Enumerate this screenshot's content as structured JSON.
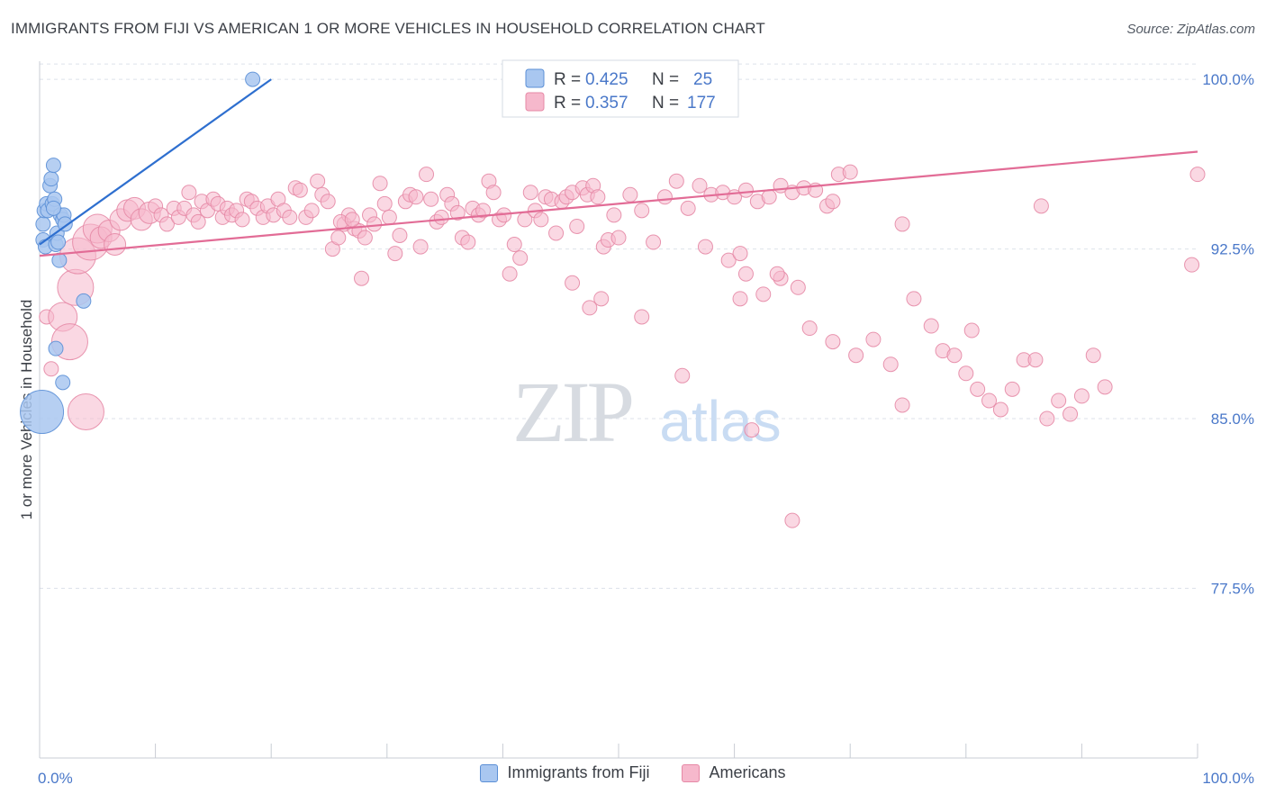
{
  "title": "IMMIGRANTS FROM FIJI VS AMERICAN 1 OR MORE VEHICLES IN HOUSEHOLD CORRELATION CHART",
  "source": "Source: ZipAtlas.com",
  "watermark": {
    "zip": "ZIP",
    "atlas": "atlas"
  },
  "colors": {
    "blue_fill": "#a9c7f0",
    "blue_stroke": "#5b8fd6",
    "blue_line": "#2e6fcf",
    "pink_fill": "#f6b8cc",
    "pink_stroke": "#e689a6",
    "pink_line": "#e26c96",
    "tick_text": "#4a78c9",
    "grid": "#dde2ea"
  },
  "legend": {
    "rows": [
      {
        "r_label": "R =",
        "r_value": "0.425",
        "n_label": "N =",
        "n_value": "25"
      },
      {
        "r_label": "R =",
        "r_value": "0.357",
        "n_label": "N =",
        "n_value": "177"
      }
    ]
  },
  "bottom_legend": [
    "Immigrants from Fiji",
    "Americans"
  ],
  "chart_data": {
    "type": "scatter",
    "title": "IMMIGRANTS FROM FIJI VS AMERICAN 1 OR MORE VEHICLES IN HOUSEHOLD CORRELATION CHART",
    "xlabel": "",
    "ylabel": "1 or more Vehicles in Household",
    "xlim": [
      0,
      100
    ],
    "ylim": [
      70.0,
      100.8
    ],
    "x_tick_labels": [
      "0.0%",
      "100.0%"
    ],
    "y_ticks": [
      77.5,
      85.0,
      92.5,
      100.0
    ],
    "y_tick_labels": [
      "77.5%",
      "85.0%",
      "92.5%",
      "100.0%"
    ],
    "grid": true,
    "legend_position": "top-center",
    "series": [
      {
        "name": "Immigrants from Fiji",
        "R": 0.425,
        "N": 25,
        "trend": [
          [
            0.0,
            92.7
          ],
          [
            20.0,
            100.0
          ]
        ],
        "points": [
          [
            0.2,
            85.3,
            3
          ],
          [
            0.3,
            92.9,
            1
          ],
          [
            0.3,
            93.6,
            1
          ],
          [
            0.4,
            94.2,
            1
          ],
          [
            0.5,
            92.6,
            1
          ],
          [
            0.6,
            94.5,
            1
          ],
          [
            0.7,
            94.2,
            1
          ],
          [
            0.9,
            95.3,
            1
          ],
          [
            1.0,
            95.6,
            1
          ],
          [
            1.1,
            94.5,
            1
          ],
          [
            1.2,
            96.2,
            1
          ],
          [
            1.3,
            94.7,
            1
          ],
          [
            1.4,
            92.7,
            1
          ],
          [
            1.5,
            93.2,
            1
          ],
          [
            1.6,
            92.8,
            1
          ],
          [
            1.7,
            92.0,
            1
          ],
          [
            1.8,
            94.0,
            1
          ],
          [
            2.0,
            93.8,
            1
          ],
          [
            2.1,
            94.0,
            1
          ],
          [
            2.2,
            93.6,
            1
          ],
          [
            1.4,
            88.1,
            1
          ],
          [
            2.0,
            86.6,
            1
          ],
          [
            3.8,
            90.2,
            1
          ],
          [
            1.2,
            94.3,
            1
          ],
          [
            18.4,
            100.0,
            1
          ]
        ]
      },
      {
        "name": "Americans",
        "R": 0.357,
        "N": 177,
        "trend": [
          [
            0.0,
            92.2
          ],
          [
            100.0,
            96.8
          ]
        ],
        "points": [
          [
            0.6,
            89.5,
            1
          ],
          [
            1.0,
            87.2,
            1
          ],
          [
            2.0,
            89.5,
            2
          ],
          [
            2.6,
            88.4,
            2.5
          ],
          [
            3.1,
            90.8,
            2.5
          ],
          [
            3.3,
            92.2,
            2.5
          ],
          [
            4.0,
            85.3,
            2.5
          ],
          [
            4.4,
            92.8,
            2.5
          ],
          [
            5.0,
            93.4,
            2
          ],
          [
            5.3,
            93.0,
            1.5
          ],
          [
            6.0,
            93.3,
            1.5
          ],
          [
            6.5,
            92.7,
            1.5
          ],
          [
            7.0,
            93.8,
            1.5
          ],
          [
            7.6,
            94.2,
            1.5
          ],
          [
            8.2,
            94.3,
            1.5
          ],
          [
            8.8,
            93.8,
            1.5
          ],
          [
            9.5,
            94.1,
            1.5
          ],
          [
            10.0,
            94.4,
            1
          ],
          [
            10.5,
            94.0,
            1
          ],
          [
            11.0,
            93.6,
            1
          ],
          [
            11.6,
            94.3,
            1
          ],
          [
            12.0,
            93.9,
            1
          ],
          [
            12.5,
            94.3,
            1
          ],
          [
            12.9,
            95.0,
            1
          ],
          [
            13.3,
            94.0,
            1
          ],
          [
            13.7,
            93.7,
            1
          ],
          [
            14.0,
            94.6,
            1
          ],
          [
            14.5,
            94.2,
            1
          ],
          [
            15.0,
            94.7,
            1
          ],
          [
            15.4,
            94.5,
            1
          ],
          [
            15.8,
            93.9,
            1
          ],
          [
            16.2,
            94.3,
            1
          ],
          [
            16.6,
            94.0,
            1
          ],
          [
            17.0,
            94.2,
            1
          ],
          [
            17.5,
            93.8,
            1
          ],
          [
            17.9,
            94.7,
            1
          ],
          [
            18.3,
            94.6,
            1
          ],
          [
            18.8,
            94.3,
            1
          ],
          [
            19.3,
            93.9,
            1
          ],
          [
            19.7,
            94.4,
            1
          ],
          [
            20.2,
            94.0,
            1
          ],
          [
            20.6,
            94.7,
            1
          ],
          [
            21.1,
            94.2,
            1
          ],
          [
            21.6,
            93.9,
            1
          ],
          [
            22.1,
            95.2,
            1
          ],
          [
            22.5,
            95.1,
            1
          ],
          [
            23.0,
            93.9,
            1
          ],
          [
            23.5,
            94.2,
            1
          ],
          [
            24.0,
            95.5,
            1
          ],
          [
            24.4,
            94.9,
            1
          ],
          [
            24.9,
            94.6,
            1
          ],
          [
            25.3,
            92.5,
            1
          ],
          [
            25.8,
            93.0,
            1
          ],
          [
            26.3,
            93.6,
            1
          ],
          [
            26.7,
            94.0,
            1
          ],
          [
            27.2,
            93.4,
            1
          ],
          [
            27.6,
            93.3,
            1
          ],
          [
            28.1,
            93.0,
            1
          ],
          [
            28.5,
            94.0,
            1
          ],
          [
            28.9,
            93.6,
            1
          ],
          [
            26.0,
            93.7,
            1
          ],
          [
            27.0,
            93.8,
            1
          ],
          [
            27.8,
            91.2,
            1
          ],
          [
            29.4,
            95.4,
            1
          ],
          [
            29.8,
            94.5,
            1
          ],
          [
            30.2,
            93.9,
            1
          ],
          [
            30.7,
            92.3,
            1
          ],
          [
            31.1,
            93.1,
            1
          ],
          [
            31.6,
            94.6,
            1
          ],
          [
            32.0,
            94.9,
            1
          ],
          [
            32.5,
            94.8,
            1
          ],
          [
            32.9,
            92.6,
            1
          ],
          [
            33.4,
            95.8,
            1
          ],
          [
            33.8,
            94.7,
            1
          ],
          [
            34.3,
            93.7,
            1
          ],
          [
            34.7,
            93.9,
            1
          ],
          [
            35.2,
            94.9,
            1
          ],
          [
            35.6,
            94.5,
            1
          ],
          [
            36.1,
            94.1,
            1
          ],
          [
            36.5,
            93.0,
            1
          ],
          [
            37.0,
            92.8,
            1
          ],
          [
            37.4,
            94.3,
            1
          ],
          [
            37.9,
            94.0,
            1
          ],
          [
            38.3,
            94.2,
            1
          ],
          [
            38.8,
            95.5,
            1
          ],
          [
            39.2,
            95.0,
            1
          ],
          [
            39.7,
            93.8,
            1
          ],
          [
            40.1,
            94.0,
            1
          ],
          [
            40.6,
            91.4,
            1
          ],
          [
            41.0,
            92.7,
            1
          ],
          [
            41.5,
            92.1,
            1
          ],
          [
            41.9,
            93.8,
            1
          ],
          [
            42.4,
            95.0,
            1
          ],
          [
            42.8,
            94.2,
            1
          ],
          [
            43.3,
            93.8,
            1
          ],
          [
            43.7,
            94.8,
            1
          ],
          [
            44.2,
            94.7,
            1
          ],
          [
            44.6,
            93.2,
            1
          ],
          [
            45.1,
            94.6,
            1
          ],
          [
            45.5,
            94.8,
            1
          ],
          [
            46.0,
            95.0,
            1
          ],
          [
            46.4,
            93.5,
            1
          ],
          [
            46.9,
            95.2,
            1
          ],
          [
            47.3,
            94.9,
            1
          ],
          [
            47.8,
            95.3,
            1
          ],
          [
            48.2,
            94.8,
            1
          ],
          [
            48.7,
            92.6,
            1
          ],
          [
            49.1,
            92.9,
            1
          ],
          [
            49.6,
            94.0,
            1
          ],
          [
            50.0,
            93.0,
            1
          ],
          [
            51.0,
            94.9,
            1
          ],
          [
            52.0,
            94.2,
            1
          ],
          [
            53.0,
            92.8,
            1
          ],
          [
            54.0,
            94.8,
            1
          ],
          [
            55.0,
            95.5,
            1
          ],
          [
            56.0,
            94.3,
            1
          ],
          [
            57.0,
            95.3,
            1
          ],
          [
            58.0,
            94.9,
            1
          ],
          [
            59.0,
            95.0,
            1
          ],
          [
            60.0,
            94.8,
            1
          ],
          [
            61.0,
            95.1,
            1
          ],
          [
            62.0,
            94.6,
            1
          ],
          [
            63.0,
            94.8,
            1
          ],
          [
            64.0,
            95.3,
            1
          ],
          [
            65.0,
            95.0,
            1
          ],
          [
            66.0,
            95.2,
            1
          ],
          [
            67.0,
            95.1,
            1
          ],
          [
            68.0,
            94.4,
            1
          ],
          [
            69.0,
            95.8,
            1
          ],
          [
            70.0,
            95.9,
            1
          ],
          [
            59.5,
            92.0,
            1
          ],
          [
            60.5,
            90.3,
            1
          ],
          [
            61.0,
            91.4,
            1
          ],
          [
            62.5,
            90.5,
            1
          ],
          [
            64.0,
            91.2,
            1
          ],
          [
            65.5,
            90.8,
            1
          ],
          [
            66.5,
            89.0,
            1
          ],
          [
            68.5,
            88.4,
            1
          ],
          [
            70.5,
            87.8,
            1
          ],
          [
            72.0,
            88.5,
            1
          ],
          [
            73.5,
            87.4,
            1
          ],
          [
            74.5,
            85.6,
            1
          ],
          [
            75.5,
            90.3,
            1
          ],
          [
            77.0,
            89.1,
            1
          ],
          [
            78.0,
            88.0,
            1
          ],
          [
            79.0,
            87.8,
            1
          ],
          [
            80.0,
            87.0,
            1
          ],
          [
            80.5,
            88.9,
            1
          ],
          [
            81.0,
            86.3,
            1
          ],
          [
            82.0,
            85.8,
            1
          ],
          [
            83.0,
            85.4,
            1
          ],
          [
            84.0,
            86.3,
            1
          ],
          [
            85.0,
            87.6,
            1
          ],
          [
            86.0,
            87.6,
            1
          ],
          [
            87.0,
            85.0,
            1
          ],
          [
            88.0,
            85.8,
            1
          ],
          [
            89.0,
            85.2,
            1
          ],
          [
            90.0,
            86.0,
            1
          ],
          [
            91.0,
            87.8,
            1
          ],
          [
            92.0,
            86.4,
            1
          ],
          [
            63.7,
            91.4,
            1
          ],
          [
            60.5,
            92.3,
            1
          ],
          [
            57.5,
            92.6,
            1
          ],
          [
            52.0,
            89.5,
            1
          ],
          [
            48.5,
            90.3,
            1
          ],
          [
            46.0,
            91.0,
            1
          ],
          [
            55.5,
            86.9,
            1
          ],
          [
            47.5,
            89.9,
            1
          ],
          [
            61.5,
            84.5,
            1
          ],
          [
            65.0,
            80.5,
            1
          ],
          [
            100.0,
            95.8,
            1
          ],
          [
            99.5,
            91.8,
            1
          ],
          [
            86.5,
            94.4,
            1
          ],
          [
            74.5,
            93.6,
            1
          ],
          [
            68.5,
            94.6,
            1
          ]
        ]
      }
    ]
  }
}
